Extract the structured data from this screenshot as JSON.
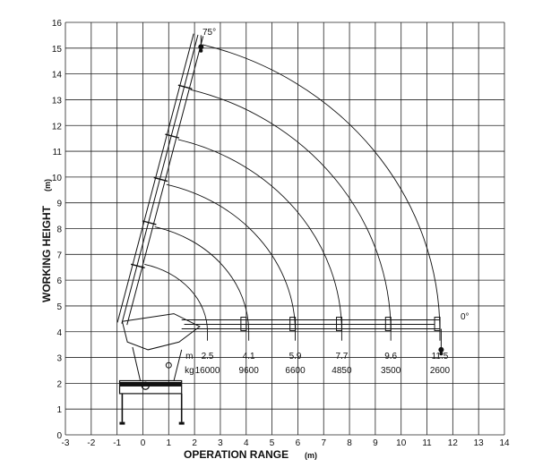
{
  "chart_data": {
    "type": "line",
    "title": "",
    "xlabel": "OPERATION RANGE",
    "xunit": "(m)",
    "ylabel": "WORKING HEIGHT",
    "yunit": "(m)",
    "xlim": [
      -3,
      14
    ],
    "ylim": [
      0,
      16
    ],
    "grid": true,
    "x_ticks": [
      "-3",
      "-2",
      "-1",
      "0",
      "1",
      "2",
      "3",
      "4",
      "5",
      "6",
      "7",
      "8",
      "9",
      "10",
      "11",
      "12",
      "13",
      "14"
    ],
    "y_ticks": [
      "0",
      "1",
      "2",
      "3",
      "4",
      "5",
      "6",
      "7",
      "8",
      "9",
      "10",
      "11",
      "12",
      "13",
      "14",
      "15",
      "16"
    ],
    "angle_labels": {
      "max": "75°",
      "min": "0°"
    },
    "load_table": {
      "unit_reach": "m",
      "unit_load": "kg",
      "reach": [
        "2.5",
        "4.1",
        "5.9",
        "7.7",
        "9.6",
        "11.5"
      ],
      "load": [
        "16000",
        "9600",
        "6600",
        "4850",
        "3500",
        "2600"
      ]
    },
    "envelope_arcs": [
      {
        "reach": 2.5,
        "top": 6.7
      },
      {
        "reach": 4.1,
        "top": 8.2
      },
      {
        "reach": 5.9,
        "top": 9.9
      },
      {
        "reach": 7.7,
        "top": 11.7
      },
      {
        "reach": 9.6,
        "top": 13.7
      },
      {
        "reach": 11.5,
        "top": 15.5
      }
    ]
  }
}
